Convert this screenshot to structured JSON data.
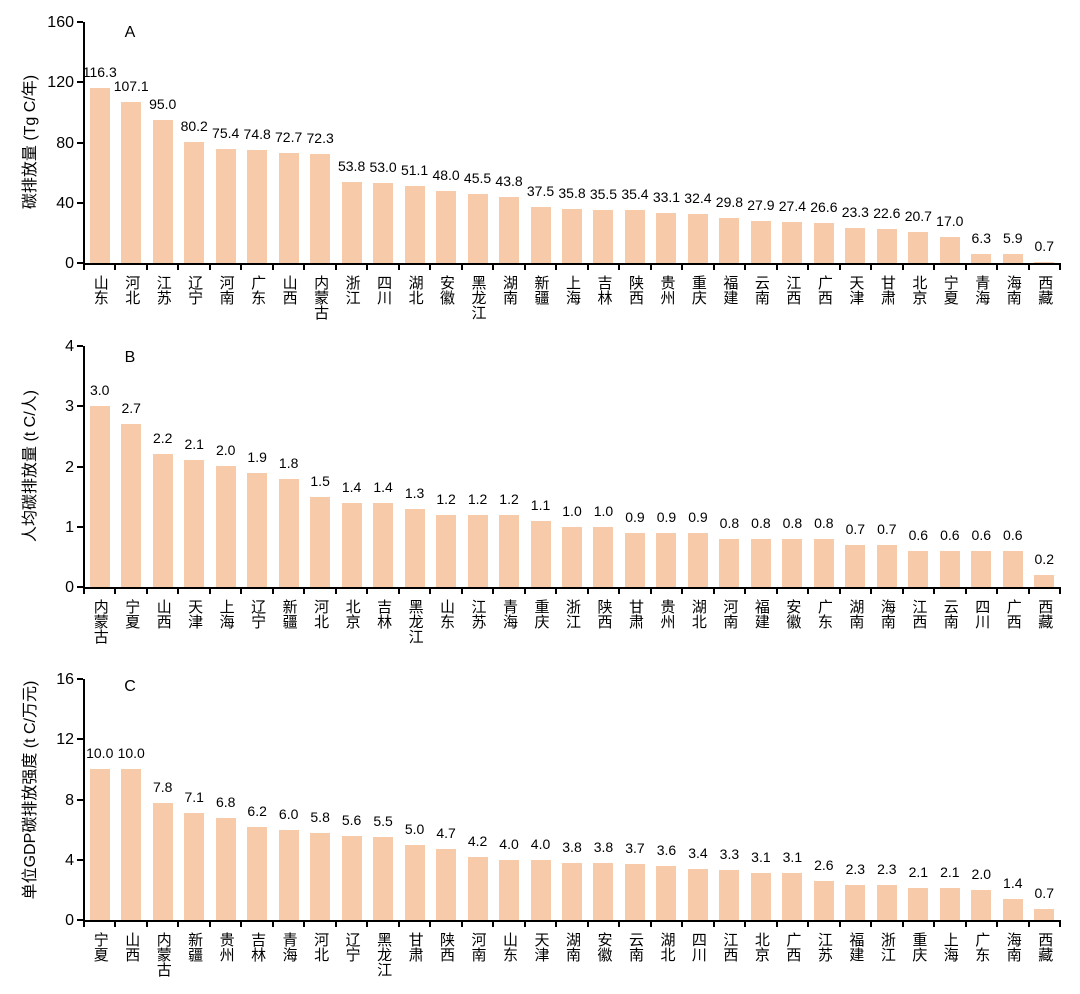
{
  "figure": {
    "background": "#ffffff",
    "bar_color": "#F7CBAA",
    "axis_color": "#000000",
    "text_color": "#000000"
  },
  "chart_data": [
    {
      "type": "bar",
      "panel_label": "A",
      "ylabel": "碳排放量 (Tg C/年)",
      "xlabel": "",
      "ylim": [
        0,
        160
      ],
      "yticks": [
        0,
        40,
        80,
        120,
        160
      ],
      "grid": false,
      "legend": "none",
      "categories": [
        "山东",
        "河北",
        "江苏",
        "辽宁",
        "河南",
        "广东",
        "山西",
        "内蒙古",
        "浙江",
        "四川",
        "湖北",
        "安徽",
        "黑龙江",
        "湖南",
        "新疆",
        "上海",
        "吉林",
        "陕西",
        "贵州",
        "重庆",
        "福建",
        "云南",
        "江西",
        "广西",
        "天津",
        "甘肃",
        "北京",
        "宁夏",
        "青海",
        "海南",
        "西藏"
      ],
      "values": [
        116.3,
        107.1,
        95.0,
        80.2,
        75.4,
        74.8,
        72.7,
        72.3,
        53.8,
        53.0,
        51.1,
        48.0,
        45.5,
        43.8,
        37.5,
        35.8,
        35.5,
        35.4,
        33.1,
        32.4,
        29.8,
        27.9,
        27.4,
        26.6,
        23.3,
        22.6,
        20.7,
        17.0,
        6.3,
        5.9,
        0.7
      ]
    },
    {
      "type": "bar",
      "panel_label": "B",
      "ylabel": "人均碳排放量 (t C/人)",
      "xlabel": "",
      "ylim": [
        0,
        4
      ],
      "yticks": [
        0,
        1,
        2,
        3,
        4
      ],
      "grid": false,
      "legend": "none",
      "categories": [
        "内蒙古",
        "宁夏",
        "山西",
        "天津",
        "上海",
        "辽宁",
        "新疆",
        "河北",
        "北京",
        "吉林",
        "黑龙江",
        "山东",
        "江苏",
        "青海",
        "重庆",
        "浙江",
        "陕西",
        "甘肃",
        "贵州",
        "湖北",
        "河南",
        "福建",
        "安徽",
        "广东",
        "湖南",
        "海南",
        "江西",
        "云南",
        "四川",
        "广西",
        "西藏"
      ],
      "values": [
        3.0,
        2.7,
        2.2,
        2.1,
        2.0,
        1.9,
        1.8,
        1.5,
        1.4,
        1.4,
        1.3,
        1.2,
        1.2,
        1.2,
        1.1,
        1.0,
        1.0,
        0.9,
        0.9,
        0.9,
        0.8,
        0.8,
        0.8,
        0.8,
        0.7,
        0.7,
        0.6,
        0.6,
        0.6,
        0.6,
        0.2
      ]
    },
    {
      "type": "bar",
      "panel_label": "C",
      "ylabel": "单位GDP碳排放强度 (t C/万元)",
      "xlabel": "",
      "ylim": [
        0,
        16
      ],
      "yticks": [
        0,
        4,
        8,
        12,
        16
      ],
      "grid": false,
      "legend": "none",
      "categories": [
        "宁夏",
        "山西",
        "内蒙古",
        "新疆",
        "贵州",
        "吉林",
        "青海",
        "河北",
        "辽宁",
        "黑龙江",
        "甘肃",
        "陕西",
        "河南",
        "山东",
        "天津",
        "湖南",
        "安徽",
        "云南",
        "湖北",
        "四川",
        "江西",
        "北京",
        "广西",
        "江苏",
        "福建",
        "浙江",
        "重庆",
        "上海",
        "广东",
        "海南",
        "西藏"
      ],
      "values": [
        10.0,
        10.0,
        7.8,
        7.1,
        6.8,
        6.2,
        6.0,
        5.8,
        5.6,
        5.5,
        5.0,
        4.7,
        4.2,
        4.0,
        4.0,
        3.8,
        3.8,
        3.7,
        3.6,
        3.4,
        3.3,
        3.1,
        3.1,
        2.6,
        2.3,
        2.3,
        2.1,
        2.1,
        2.0,
        1.4,
        0.7
      ]
    }
  ]
}
